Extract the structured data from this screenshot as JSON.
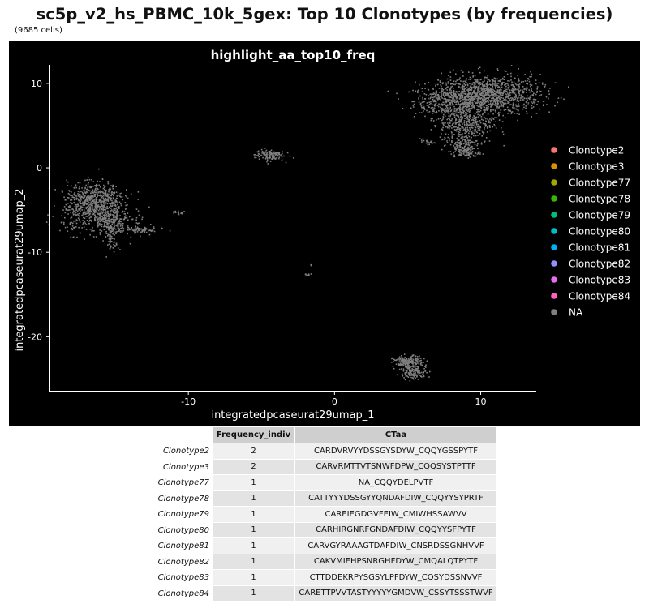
{
  "title": "sc5p_v2_hs_PBMC_10k_5gex: Top 10 Clonotypes (by frequencies)",
  "subtitle": "(9685 cells)",
  "chart_data": {
    "type": "scatter",
    "title": "highlight_aa_top10_freq",
    "xlabel": "integratedpcaseurat29umap_1",
    "ylabel": "integratedpcaseurat29umap_2",
    "xlim": [
      -19.5,
      13.8
    ],
    "ylim": [
      -26.5,
      12.2
    ],
    "xticks": [
      -10,
      0,
      10
    ],
    "yticks": [
      -20,
      -10,
      0,
      10
    ],
    "legend_position": "right",
    "background": "#000000",
    "legend": [
      {
        "name": "Clonotype2",
        "color": "#F8766D"
      },
      {
        "name": "Clonotype3",
        "color": "#D89000"
      },
      {
        "name": "Clonotype77",
        "color": "#A3A500"
      },
      {
        "name": "Clonotype78",
        "color": "#39B600"
      },
      {
        "name": "Clonotype79",
        "color": "#00BF7D"
      },
      {
        "name": "Clonotype80",
        "color": "#00BFC4"
      },
      {
        "name": "Clonotype81",
        "color": "#00B0F6"
      },
      {
        "name": "Clonotype82",
        "color": "#9590FF"
      },
      {
        "name": "Clonotype83",
        "color": "#E76BF3"
      },
      {
        "name": "Clonotype84",
        "color": "#FF62BC"
      },
      {
        "name": "NA",
        "color": "#808080"
      }
    ],
    "clusters": [
      {
        "x": 7.8,
        "y": 8.0,
        "sx": 1.2,
        "sy": 1.0,
        "n": 420
      },
      {
        "x": 10.6,
        "y": 8.7,
        "sx": 1.7,
        "sy": 1.2,
        "n": 1100
      },
      {
        "x": 9.0,
        "y": 5.3,
        "sx": 0.9,
        "sy": 1.2,
        "n": 380
      },
      {
        "x": 8.7,
        "y": 2.9,
        "sx": 0.5,
        "sy": 0.5,
        "n": 110
      },
      {
        "x": 9.0,
        "y": 1.9,
        "sx": 0.45,
        "sy": 0.3,
        "n": 90
      },
      {
        "x": 6.3,
        "y": 3.1,
        "sx": 0.25,
        "sy": 0.12,
        "n": 25
      },
      {
        "x": -4.5,
        "y": 1.6,
        "sx": 0.5,
        "sy": 0.35,
        "n": 120
      },
      {
        "x": -16.5,
        "y": -3.3,
        "sx": 0.9,
        "sy": 0.9,
        "n": 380
      },
      {
        "x": -16.3,
        "y": -5.3,
        "sx": 1.2,
        "sy": 1.2,
        "n": 520
      },
      {
        "x": -15.3,
        "y": -6.5,
        "sx": 0.5,
        "sy": 0.8,
        "n": 150
      },
      {
        "x": -15.2,
        "y": -8.6,
        "sx": 0.2,
        "sy": 0.7,
        "n": 45
      },
      {
        "x": -13.6,
        "y": -7.3,
        "sx": 0.9,
        "sy": 0.3,
        "n": 90
      },
      {
        "x": -10.8,
        "y": -5.2,
        "sx": 0.25,
        "sy": 0.1,
        "n": 15
      },
      {
        "x": 5.0,
        "y": -23.0,
        "sx": 0.5,
        "sy": 0.4,
        "n": 200
      },
      {
        "x": 5.4,
        "y": -24.2,
        "sx": 0.45,
        "sy": 0.35,
        "n": 120
      },
      {
        "x": -1.9,
        "y": -12.6,
        "sx": 0.1,
        "sy": 0.07,
        "n": 8
      },
      {
        "x": -1.6,
        "y": -11.4,
        "sx": 0.05,
        "sy": 0.05,
        "n": 3
      }
    ]
  },
  "table": {
    "columns": [
      "Frequency_indiv",
      "CTaa"
    ],
    "rows": [
      {
        "label": "Clonotype2",
        "freq": "2",
        "ctaa": "CARDVRVYYDSSGYSDYW_CQQYGSSPYTF"
      },
      {
        "label": "Clonotype3",
        "freq": "2",
        "ctaa": "CARVRMTTVTSNWFDPW_CQQSYSTPTTF"
      },
      {
        "label": "Clonotype77",
        "freq": "1",
        "ctaa": "NA_CQQYDELPVTF"
      },
      {
        "label": "Clonotype78",
        "freq": "1",
        "ctaa": "CATTYYYDSSGYYQNDAFDIW_CQQYYSYPRTF"
      },
      {
        "label": "Clonotype79",
        "freq": "1",
        "ctaa": "CAREIEGDGVFEIW_CMIWHSSAWVV"
      },
      {
        "label": "Clonotype80",
        "freq": "1",
        "ctaa": "CARHIRGNRFGNDAFDIW_CQQYYSFPYTF"
      },
      {
        "label": "Clonotype81",
        "freq": "1",
        "ctaa": "CARVGYRAAAGTDAFDIW_CNSRDSSGNHVVF"
      },
      {
        "label": "Clonotype82",
        "freq": "1",
        "ctaa": "CAKVMIEHPSNRGHFDYW_CMQALQTPYTF"
      },
      {
        "label": "Clonotype83",
        "freq": "1",
        "ctaa": "CTTDDEKRPYSGSYLPFDYW_CQSYDSSNVVF"
      },
      {
        "label": "Clonotype84",
        "freq": "1",
        "ctaa": "CARETTPVVTASTYYYYYGMDVW_CSSYTSSSTWVF"
      }
    ]
  }
}
